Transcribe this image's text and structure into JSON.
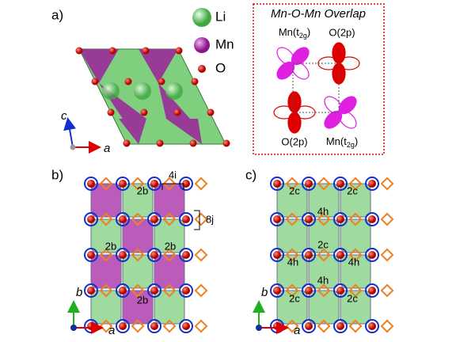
{
  "panels": [
    {
      "label": "a)",
      "axes": {
        "vertical": "c",
        "horizontal": "a"
      }
    },
    {
      "label": "b)",
      "axes": {
        "vertical": "b",
        "horizontal": "a"
      },
      "sites": [
        "2b",
        "2b",
        "2b",
        "2b",
        "4i",
        "8j"
      ]
    },
    {
      "label": "c)",
      "axes": {
        "vertical": "b",
        "horizontal": "a"
      },
      "sites": [
        "2c",
        "2c",
        "2c",
        "2c",
        "2c",
        "4h",
        "4h",
        "4h",
        "4h"
      ]
    }
  ],
  "legend": [
    "Li",
    "Mn",
    "O"
  ],
  "inset": {
    "title": "Mn-O-Mn Overlap",
    "labels": [
      {
        "main": "Mn(t",
        "sub": "2g",
        "end": ")"
      },
      {
        "main": "O(2p)"
      },
      {
        "main": "O(2p)"
      },
      {
        "main": "Mn(t",
        "sub": "2g",
        "end": ")"
      }
    ]
  }
}
